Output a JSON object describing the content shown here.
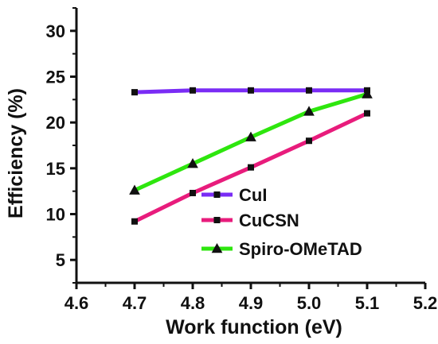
{
  "chart_data": {
    "type": "line",
    "title": "",
    "xlabel": "Work function (eV)",
    "ylabel": "Efficiency (%)",
    "xlim": [
      4.6,
      5.2
    ],
    "ylim": [
      2.5,
      32.5
    ],
    "xticks": [
      4.6,
      4.7,
      4.8,
      4.9,
      5.0,
      5.1,
      5.2
    ],
    "xtick_labels": [
      "4.6",
      "4.7",
      "4.8",
      "4.9",
      "5.0",
      "5.1",
      "5.2"
    ],
    "yticks": [
      5,
      10,
      15,
      20,
      25,
      30
    ],
    "ytick_labels": [
      "5",
      "10",
      "15",
      "20",
      "25",
      "30"
    ],
    "grid": false,
    "legend_position": "bottom-right",
    "x": [
      4.7,
      4.8,
      4.9,
      5.0,
      5.1
    ],
    "series": [
      {
        "name": "CuI",
        "values": [
          23.3,
          23.5,
          23.5,
          23.5,
          23.5
        ],
        "color": "#7a2cf5",
        "marker": "square"
      },
      {
        "name": "CuCSN",
        "values": [
          9.2,
          12.3,
          15.1,
          18.0,
          21.0
        ],
        "color": "#e81c7c",
        "marker": "square"
      },
      {
        "name": "Spiro-OMeTAD",
        "values": [
          12.6,
          15.5,
          18.4,
          21.2,
          23.1
        ],
        "color": "#2ee60e",
        "marker": "triangle"
      }
    ]
  }
}
